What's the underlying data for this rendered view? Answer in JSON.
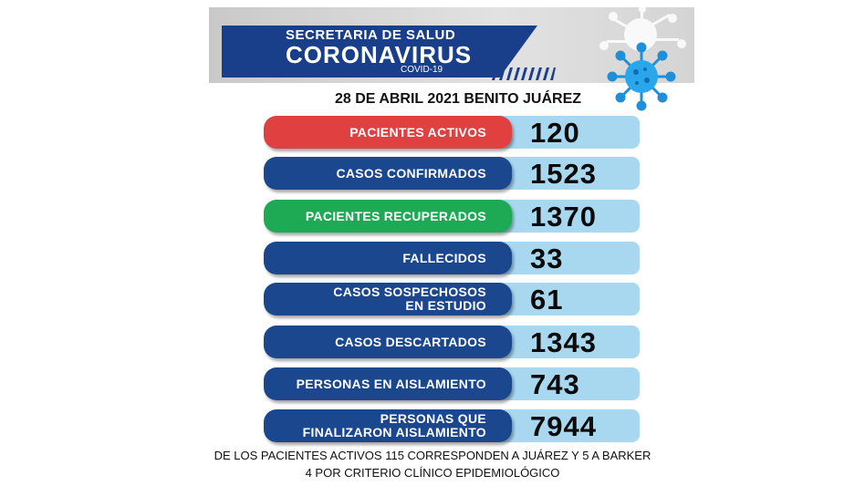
{
  "header": {
    "line1": "SECRETARIA DE SALUD",
    "line2": "CORONAVIRUS",
    "line3": "COVID-19"
  },
  "date_line": "28 DE ABRIL  2021 BENITO JUÁREZ",
  "stats": [
    {
      "label_lines": [
        "PACIENTES ACTIVOS"
      ],
      "value": "120",
      "color": "#e04040"
    },
    {
      "label_lines": [
        "CASOS CONFIRMADOS"
      ],
      "value": "1523",
      "color": "#1a478e"
    },
    {
      "label_lines": [
        "PACIENTES RECUPERADOS"
      ],
      "value": "1370",
      "color": "#1eaa55"
    },
    {
      "label_lines": [
        "FALLECIDOS"
      ],
      "value": "33",
      "color": "#1a478e"
    },
    {
      "label_lines": [
        "CASOS SOSPECHOSOS",
        "EN ESTUDIO"
      ],
      "value": "61",
      "color": "#1a478e"
    },
    {
      "label_lines": [
        "CASOS DESCARTADOS"
      ],
      "value": "1343",
      "color": "#1a478e"
    },
    {
      "label_lines": [
        "PERSONAS EN AISLAMIENTO"
      ],
      "value": "743",
      "color": "#1a478e"
    },
    {
      "label_lines": [
        "PERSONAS QUE",
        "FINALIZARON AISLAMIENTO"
      ],
      "value": "7944",
      "color": "#1a478e"
    }
  ],
  "footer": {
    "line1": "DE LOS PACIENTES ACTIVOS 115 CORRESPONDEN A JUÁREZ Y 5 A BARKER",
    "line2": "4 POR CRITERIO CLÍNICO EPIDEMIOLÓGICO"
  },
  "icons": {
    "virus": "coronavirus-icon"
  },
  "colors": {
    "brand_blue": "#1a478e",
    "value_bg": "#a8d8f0",
    "active_red": "#e04040",
    "recovered_green": "#1eaa55"
  }
}
